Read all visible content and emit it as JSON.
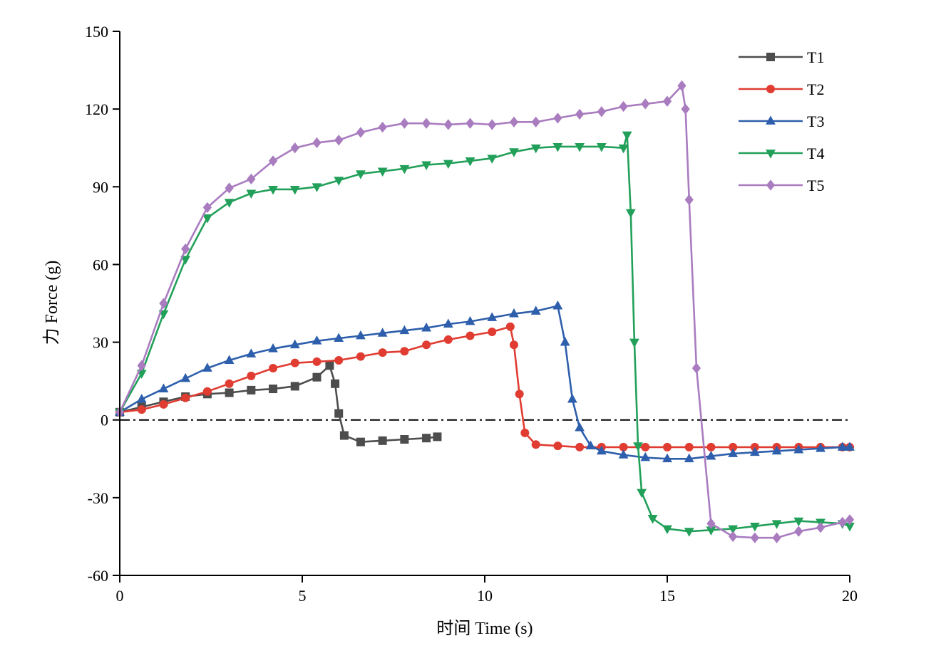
{
  "chart_data": {
    "type": "line",
    "title": "",
    "xlabel": "时间 Time (s)",
    "ylabel": "力 Force (g)",
    "xlim": [
      0,
      20
    ],
    "ylim": [
      -60,
      150
    ],
    "xticks": [
      0,
      5,
      10,
      15,
      20
    ],
    "yticks": [
      -60,
      -30,
      0,
      30,
      60,
      90,
      120,
      150
    ],
    "grid": false,
    "legend_position": "top-right",
    "reference_line": {
      "y": 0,
      "style": "dash-dot",
      "color": "#000000"
    },
    "series": [
      {
        "name": "T1",
        "color": "#4d4d4d",
        "marker": "square",
        "x": [
          0,
          0.6,
          1.2,
          1.8,
          2.4,
          3.0,
          3.6,
          4.2,
          4.8,
          5.4,
          5.75,
          5.9,
          6.0,
          6.15,
          6.6,
          7.2,
          7.8,
          8.4,
          8.7
        ],
        "y": [
          3,
          5,
          7,
          9,
          10,
          10.5,
          11.5,
          12,
          13,
          16.5,
          21,
          14,
          2.5,
          -6,
          -8.5,
          -8,
          -7.5,
          -7,
          -6.5
        ]
      },
      {
        "name": "T2",
        "color": "#e03c31",
        "marker": "circle",
        "x": [
          0,
          0.6,
          1.2,
          1.8,
          2.4,
          3.0,
          3.6,
          4.2,
          4.8,
          5.4,
          6.0,
          6.6,
          7.2,
          7.8,
          8.4,
          9.0,
          9.6,
          10.2,
          10.7,
          10.8,
          10.95,
          11.1,
          11.4,
          12.0,
          12.6,
          13.2,
          13.8,
          14.4,
          15.0,
          15.6,
          16.2,
          16.8,
          17.4,
          18.0,
          18.6,
          19.2,
          19.8,
          20.0
        ],
        "y": [
          3,
          4,
          6,
          8.5,
          11,
          14,
          17,
          20,
          22,
          22.5,
          23,
          24.5,
          26,
          26.5,
          29,
          31,
          32.5,
          34,
          36,
          29,
          10,
          -5,
          -9.5,
          -10,
          -10.5,
          -10.5,
          -10.5,
          -10.5,
          -10.5,
          -10.5,
          -10.5,
          -10.5,
          -10.5,
          -10.5,
          -10.5,
          -10.5,
          -10.5,
          -10.5
        ]
      },
      {
        "name": "T3",
        "color": "#2e5fac",
        "marker": "triangle-up",
        "x": [
          0,
          0.6,
          1.2,
          1.8,
          2.4,
          3.0,
          3.6,
          4.2,
          4.8,
          5.4,
          6.0,
          6.6,
          7.2,
          7.8,
          8.4,
          9.0,
          9.6,
          10.2,
          10.8,
          11.4,
          12.0,
          12.2,
          12.4,
          12.6,
          12.9,
          13.2,
          13.8,
          14.4,
          15.0,
          15.6,
          16.2,
          16.8,
          17.4,
          18.0,
          18.6,
          19.2,
          19.8,
          20.0
        ],
        "y": [
          3,
          8,
          12,
          16,
          20,
          23,
          25.5,
          27.5,
          29,
          30.5,
          31.5,
          32.5,
          33.5,
          34.5,
          35.5,
          37,
          38,
          39.5,
          41,
          42,
          44,
          30,
          8,
          -3,
          -10,
          -12,
          -13.5,
          -14.5,
          -15,
          -15,
          -14,
          -13,
          -12.5,
          -12,
          -11.5,
          -11,
          -10.5,
          -10.5
        ]
      },
      {
        "name": "T4",
        "color": "#22a05a",
        "marker": "triangle-down",
        "x": [
          0,
          0.6,
          1.2,
          1.8,
          2.4,
          3.0,
          3.6,
          4.2,
          4.8,
          5.4,
          6.0,
          6.6,
          7.2,
          7.8,
          8.4,
          9.0,
          9.6,
          10.2,
          10.8,
          11.4,
          12.0,
          12.6,
          13.2,
          13.8,
          13.9,
          14.0,
          14.1,
          14.2,
          14.3,
          14.6,
          15.0,
          15.6,
          16.2,
          16.8,
          17.4,
          18.0,
          18.6,
          19.2,
          19.8,
          20.0
        ],
        "y": [
          3,
          18,
          41,
          62,
          78,
          84,
          87.5,
          89,
          89,
          90,
          92.5,
          95,
          96,
          97,
          98.5,
          99,
          100,
          101,
          103.5,
          105,
          105.5,
          105.5,
          105.5,
          105,
          110,
          80,
          30,
          -10,
          -28,
          -38,
          -42,
          -43,
          -42.5,
          -42,
          -41,
          -40,
          -39,
          -39.5,
          -40,
          -41
        ]
      },
      {
        "name": "T5",
        "color": "#a97cc0",
        "marker": "diamond",
        "x": [
          0,
          0.6,
          1.2,
          1.8,
          2.4,
          3.0,
          3.6,
          4.2,
          4.8,
          5.4,
          6.0,
          6.6,
          7.2,
          7.8,
          8.4,
          9.0,
          9.6,
          10.2,
          10.8,
          11.4,
          12.0,
          12.6,
          13.2,
          13.8,
          14.4,
          15.0,
          15.4,
          15.5,
          15.6,
          15.8,
          16.2,
          16.8,
          17.4,
          18.0,
          18.6,
          19.2,
          19.8,
          20.0
        ],
        "y": [
          3,
          21,
          45,
          66,
          82,
          89.5,
          93,
          100,
          105,
          107,
          108,
          111,
          113,
          114.5,
          114.5,
          114,
          114.5,
          114,
          115,
          115,
          116.5,
          118,
          119,
          121,
          122,
          123,
          129,
          120,
          85,
          20,
          -40,
          -45,
          -45.5,
          -45.5,
          -43,
          -41.5,
          -39.5,
          -38.5
        ]
      }
    ]
  }
}
